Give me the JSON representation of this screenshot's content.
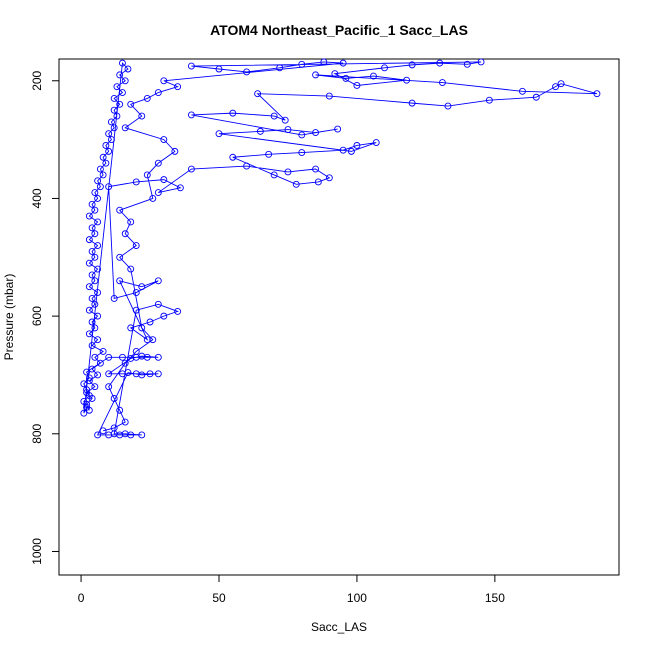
{
  "chart_data": {
    "type": "scatter",
    "title": "ATOM4 Northeast_Pacific_1 Sacc_LAS",
    "xlabel": "Sacc_LAS",
    "ylabel": "Pressure (mbar)",
    "xlim": [
      -8,
      195
    ],
    "ylim": [
      1040,
      163
    ],
    "y_reversed": true,
    "x_ticks": [
      0,
      50,
      100,
      150
    ],
    "y_ticks": [
      200,
      400,
      600,
      800,
      1000
    ],
    "grid": false,
    "legend": "none",
    "series": [
      {
        "color": "#0000ff",
        "marker": "open-circle",
        "connected": true,
        "points": [
          [
            3,
            760
          ],
          [
            2,
            750
          ],
          [
            4,
            740
          ],
          [
            2,
            730
          ],
          [
            5,
            720
          ],
          [
            3,
            710
          ],
          [
            6,
            700
          ],
          [
            4,
            690
          ],
          [
            7,
            680
          ],
          [
            5,
            670
          ],
          [
            8,
            660
          ],
          [
            4,
            650
          ],
          [
            6,
            640
          ],
          [
            3,
            630
          ],
          [
            5,
            620
          ],
          [
            4,
            610
          ],
          [
            6,
            600
          ],
          [
            3,
            590
          ],
          [
            5,
            580
          ],
          [
            4,
            570
          ],
          [
            6,
            560
          ],
          [
            3,
            550
          ],
          [
            5,
            540
          ],
          [
            4,
            530
          ],
          [
            6,
            520
          ],
          [
            3,
            510
          ],
          [
            5,
            500
          ],
          [
            4,
            490
          ],
          [
            6,
            480
          ],
          [
            3,
            470
          ],
          [
            5,
            460
          ],
          [
            4,
            450
          ],
          [
            6,
            440
          ],
          [
            3,
            430
          ],
          [
            5,
            420
          ],
          [
            4,
            410
          ],
          [
            6,
            400
          ],
          [
            5,
            390
          ],
          [
            7,
            380
          ],
          [
            6,
            370
          ],
          [
            8,
            360
          ],
          [
            7,
            350
          ],
          [
            9,
            340
          ],
          [
            8,
            330
          ],
          [
            10,
            320
          ],
          [
            9,
            310
          ],
          [
            11,
            300
          ],
          [
            10,
            290
          ],
          [
            12,
            280
          ],
          [
            11,
            270
          ],
          [
            13,
            260
          ],
          [
            12,
            250
          ],
          [
            14,
            240
          ],
          [
            12,
            230
          ],
          [
            15,
            220
          ],
          [
            13,
            210
          ],
          [
            16,
            200
          ],
          [
            14,
            190
          ],
          [
            17,
            180
          ],
          [
            15,
            170
          ],
          [
            1,
            765
          ],
          [
            2,
            755
          ],
          [
            1,
            745
          ],
          [
            3,
            735
          ],
          [
            2,
            725
          ],
          [
            1,
            715
          ],
          [
            3,
            705
          ],
          [
            2,
            695
          ],
          [
            10,
            670
          ],
          [
            15,
            670
          ],
          [
            20,
            670
          ],
          [
            24,
            670
          ],
          [
            28,
            670
          ],
          [
            22,
            668
          ],
          [
            18,
            672
          ],
          [
            10,
            698
          ],
          [
            15,
            698
          ],
          [
            20,
            698
          ],
          [
            25,
            698
          ],
          [
            28,
            698
          ],
          [
            22,
            700
          ],
          [
            17,
            696
          ],
          [
            6,
            802
          ],
          [
            10,
            802
          ],
          [
            14,
            802
          ],
          [
            18,
            802
          ],
          [
            22,
            802
          ],
          [
            16,
            800
          ],
          [
            12,
            800
          ],
          [
            20,
            590
          ],
          [
            28,
            580
          ],
          [
            35,
            592
          ],
          [
            30,
            600
          ],
          [
            25,
            610
          ],
          [
            18,
            620
          ],
          [
            24,
            640
          ],
          [
            14,
            540
          ],
          [
            22,
            550
          ],
          [
            28,
            540
          ],
          [
            20,
            560
          ],
          [
            12,
            570
          ],
          [
            10,
            380
          ],
          [
            20,
            372
          ],
          [
            30,
            368
          ],
          [
            36,
            382
          ],
          [
            28,
            390
          ],
          [
            40,
            350
          ],
          [
            60,
            345
          ],
          [
            75,
            355
          ],
          [
            85,
            350
          ],
          [
            90,
            365
          ],
          [
            86,
            372
          ],
          [
            78,
            376
          ],
          [
            70,
            360
          ],
          [
            55,
            330
          ],
          [
            68,
            325
          ],
          [
            80,
            322
          ],
          [
            95,
            318
          ],
          [
            100,
            310
          ],
          [
            107,
            305
          ],
          [
            98,
            320
          ],
          [
            50,
            290
          ],
          [
            65,
            286
          ],
          [
            75,
            283
          ],
          [
            85,
            288
          ],
          [
            93,
            282
          ],
          [
            80,
            292
          ],
          [
            40,
            258
          ],
          [
            55,
            255
          ],
          [
            70,
            260
          ],
          [
            74,
            267
          ],
          [
            64,
            222
          ],
          [
            90,
            226
          ],
          [
            120,
            238
          ],
          [
            133,
            243
          ],
          [
            148,
            233
          ],
          [
            165,
            228
          ],
          [
            172,
            210
          ],
          [
            174,
            205
          ],
          [
            187,
            222
          ],
          [
            160,
            218
          ],
          [
            131,
            203
          ],
          [
            85,
            190
          ],
          [
            96,
            196
          ],
          [
            106,
            192
          ],
          [
            118,
            199
          ],
          [
            100,
            208
          ],
          [
            92,
            188
          ],
          [
            110,
            178
          ],
          [
            120,
            173
          ],
          [
            130,
            170
          ],
          [
            140,
            172
          ],
          [
            145,
            168
          ],
          [
            40,
            175
          ],
          [
            50,
            180
          ],
          [
            60,
            185
          ],
          [
            72,
            178
          ],
          [
            80,
            172
          ],
          [
            88,
            168
          ],
          [
            95,
            170
          ],
          [
            30,
            200
          ],
          [
            35,
            210
          ],
          [
            28,
            220
          ],
          [
            24,
            230
          ],
          [
            18,
            240
          ],
          [
            22,
            260
          ],
          [
            16,
            280
          ],
          [
            30,
            300
          ],
          [
            34,
            320
          ],
          [
            28,
            340
          ],
          [
            24,
            360
          ],
          [
            26,
            400
          ],
          [
            14,
            420
          ],
          [
            18,
            440
          ],
          [
            16,
            460
          ],
          [
            20,
            480
          ],
          [
            14,
            500
          ],
          [
            18,
            520
          ],
          [
            22,
            620
          ],
          [
            26,
            640
          ],
          [
            20,
            660
          ],
          [
            16,
            680
          ],
          [
            10,
            720
          ],
          [
            12,
            740
          ],
          [
            14,
            760
          ],
          [
            16,
            780
          ],
          [
            12,
            790
          ],
          [
            8,
            795
          ]
        ]
      }
    ]
  }
}
